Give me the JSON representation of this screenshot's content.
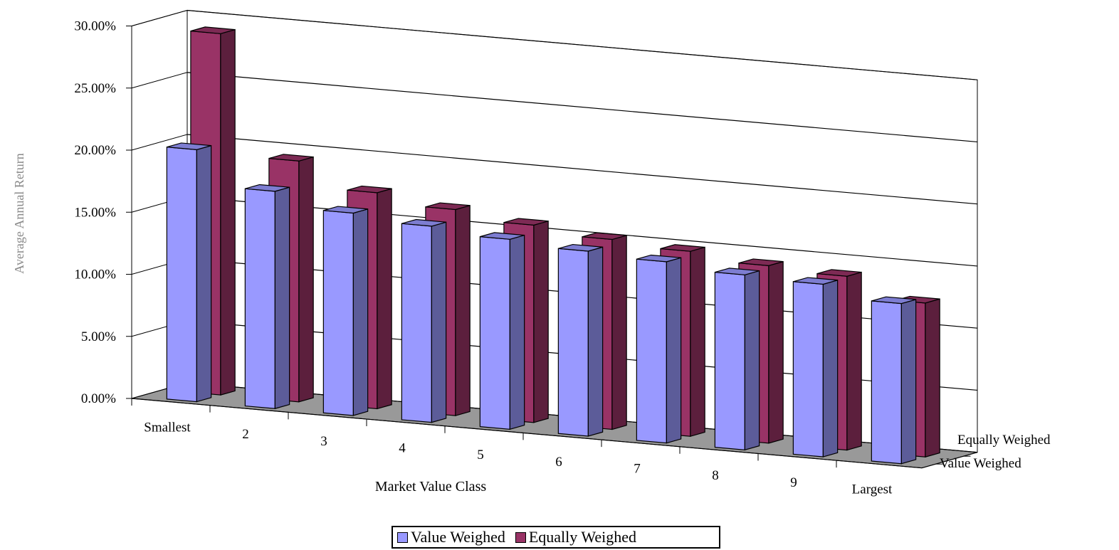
{
  "chart_data": {
    "type": "bar",
    "style": "3d-clustered-depth",
    "categories": [
      "Smallest",
      "2",
      "3",
      "4",
      "5",
      "6",
      "7",
      "8",
      "9",
      "Largest"
    ],
    "series": [
      {
        "name": "Value Weighed",
        "color": "#9999ff",
        "values": [
          20.3,
          17.5,
          16.3,
          15.8,
          15.3,
          14.9,
          14.6,
          14.1,
          13.9,
          12.9
        ]
      },
      {
        "name": "Equally Weighed",
        "color": "#993366",
        "values": [
          29.1,
          19.4,
          17.4,
          16.6,
          15.9,
          15.3,
          14.9,
          14.3,
          14.0,
          12.4
        ]
      }
    ],
    "ylabel": "Average Annual Return",
    "xlabel": "Market Value Class",
    "depth_labels": [
      "Equally Weighed",
      "Value Weighed"
    ],
    "yticks": [
      "0.00%",
      "5.00%",
      "10.00%",
      "15.00%",
      "20.00%",
      "25.00%",
      "30.00%"
    ],
    "ylim": [
      0,
      30
    ],
    "grid": true,
    "legend_position": "bottom"
  },
  "legend": {
    "items": [
      {
        "label": "Value Weighed",
        "color": "#9999ff"
      },
      {
        "label": "Equally Weighed",
        "color": "#993366"
      }
    ]
  }
}
